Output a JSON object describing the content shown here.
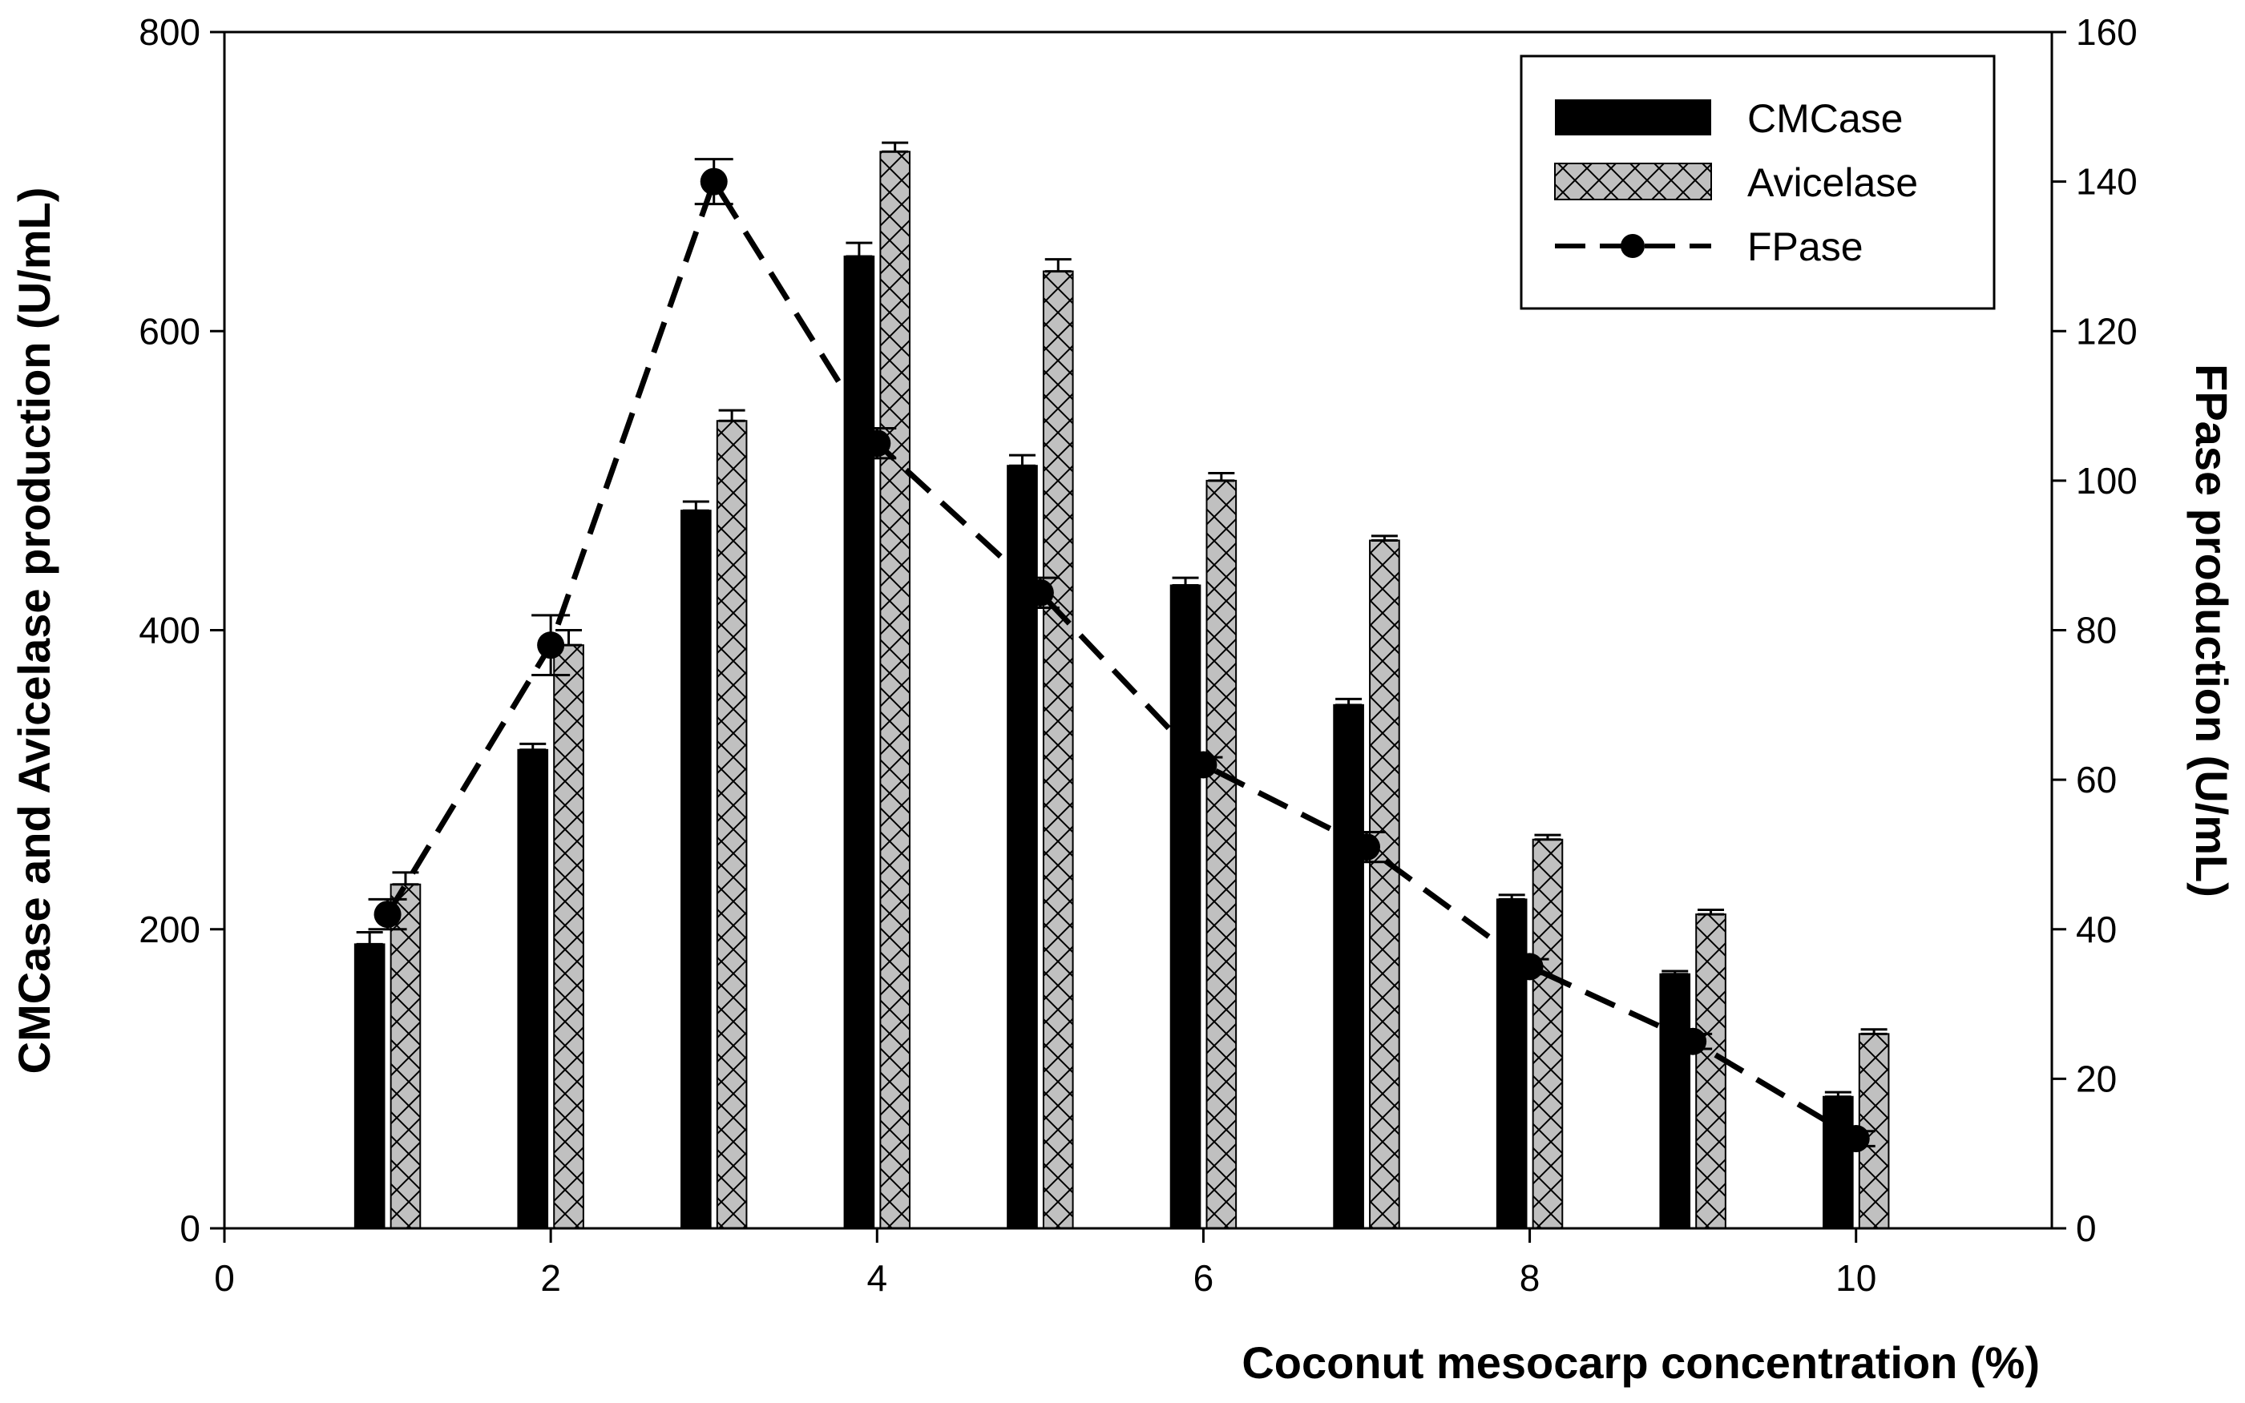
{
  "chart_data": {
    "type": "bar",
    "title": "",
    "xlabel": "Coconut mesocarp concentration (%)",
    "ylabel": "CMCase and Avicelase production (U/mL)",
    "y2label": "FPase production (U/mL)",
    "xlim": [
      0,
      11.2
    ],
    "ylim": [
      0,
      800
    ],
    "y2lim": [
      0,
      160
    ],
    "xticks": [
      0,
      2,
      4,
      6,
      8,
      10
    ],
    "yticks": [
      0,
      200,
      400,
      600,
      800
    ],
    "y2ticks": [
      0,
      20,
      40,
      60,
      80,
      100,
      120,
      140,
      160
    ],
    "x": [
      1,
      2,
      3,
      4,
      5,
      6,
      7,
      8,
      9,
      10
    ],
    "series": [
      {
        "name": "CMCase",
        "kind": "bar",
        "axis": "left",
        "color": "#000000",
        "values": [
          190,
          320,
          480,
          650,
          510,
          430,
          350,
          220,
          170,
          88
        ],
        "errors": [
          8,
          4,
          6,
          9,
          7,
          5,
          4,
          3,
          2,
          3
        ]
      },
      {
        "name": "Avicelase",
        "kind": "bar",
        "axis": "left",
        "color": "#c0c0c0",
        "pattern": "crosshatch",
        "values": [
          230,
          390,
          540,
          720,
          640,
          500,
          460,
          260,
          210,
          130
        ],
        "errors": [
          8,
          10,
          7,
          6,
          8,
          5,
          3,
          3,
          3,
          3
        ]
      },
      {
        "name": "FPase",
        "kind": "line",
        "axis": "right",
        "color": "#000000",
        "style": "dashed",
        "values": [
          42,
          78,
          140,
          105,
          85,
          62,
          51,
          35,
          25,
          12
        ],
        "errors": [
          2,
          4,
          3,
          2,
          2,
          1,
          2,
          1,
          1,
          1
        ]
      }
    ],
    "legend": {
      "position": "top-right",
      "items": [
        "CMCase",
        "Avicelase",
        "FPase"
      ]
    }
  }
}
